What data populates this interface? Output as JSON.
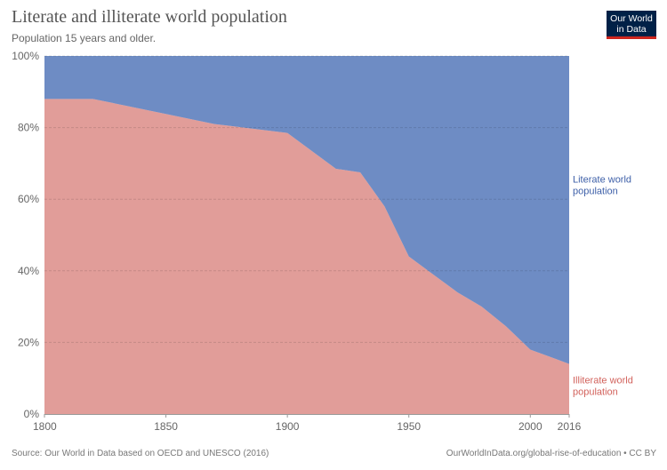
{
  "header": {
    "title": "Literate and illiterate world population",
    "subtitle": "Population 15 years and older."
  },
  "logo": {
    "line1": "Our World",
    "line2": "in Data"
  },
  "footer": {
    "source": "Source: Our World in Data based on OECD and UNESCO (2016)",
    "url": "OurWorldInData.org/global-rise-of-education • CC BY"
  },
  "chart_data": {
    "type": "area",
    "stacked": true,
    "normalized": true,
    "x": [
      1800,
      1820,
      1870,
      1900,
      1920,
      1930,
      1940,
      1950,
      1960,
      1970,
      1980,
      1990,
      2000,
      2010,
      2016
    ],
    "x_ticks": [
      "1800",
      "1850",
      "1900",
      "1950",
      "2000",
      "2016"
    ],
    "y_ticks": [
      "0%",
      "20%",
      "40%",
      "60%",
      "80%",
      "100%"
    ],
    "ylim": [
      0,
      100
    ],
    "grid": true,
    "series": [
      {
        "name": "Illiterate world population",
        "color": "#d9847f",
        "values": [
          88,
          88,
          81,
          78.5,
          68.5,
          67.5,
          58,
          44,
          39,
          34,
          30,
          24.5,
          18,
          15.5,
          14
        ]
      },
      {
        "name": "Literate world population",
        "color": "#4a6fb5",
        "values": [
          12,
          12,
          19,
          21.5,
          31.5,
          32.5,
          42,
          56,
          61,
          66,
          70,
          75.5,
          82,
          84.5,
          86
        ]
      }
    ],
    "labels": {
      "literate": [
        "Literate world",
        "population"
      ],
      "illiterate": [
        "Illiterate world",
        "population"
      ]
    },
    "label_colors": {
      "literate": "#3d5fa8",
      "illiterate": "#d2625c"
    }
  }
}
